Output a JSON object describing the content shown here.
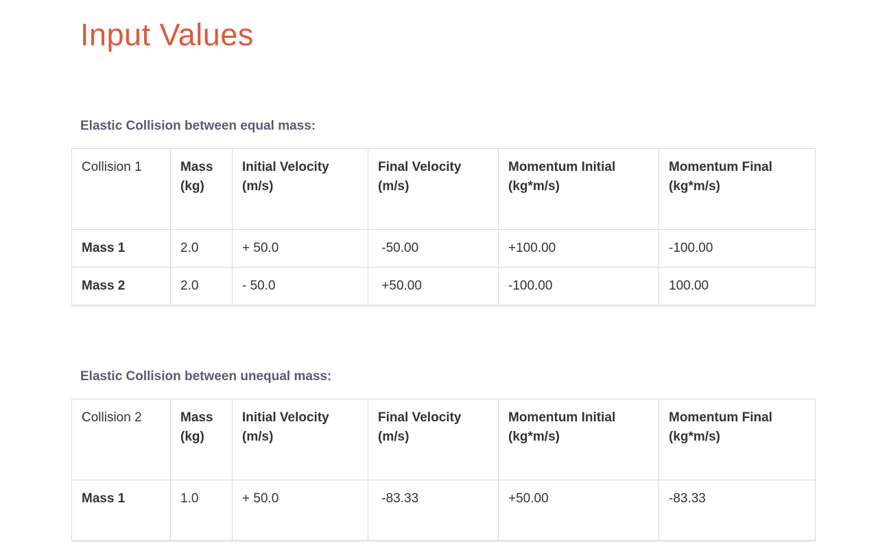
{
  "page": {
    "title": "Input Values"
  },
  "colors": {
    "accent": "#dc5a3d",
    "heading": "#5e5874",
    "text": "#333333",
    "border": "#d9d9d9"
  },
  "sections": [
    {
      "heading": "Elastic Collision between equal mass:",
      "table": {
        "columns": [
          "Collision 1",
          "Mass\n(kg)",
          "Initial Velocity\n(m/s)",
          "Final Velocity\n(m/s)",
          "Momentum Initial\n(kg*m/s)",
          "Momentum Final\n(kg*m/s)"
        ],
        "rows": [
          [
            "Mass 1",
            "2.0",
            "+ 50.0",
            " -50.00",
            "+100.00",
            "-100.00"
          ],
          [
            "Mass 2",
            "2.0",
            "- 50.0",
            " +50.00",
            "-100.00",
            "100.00"
          ]
        ]
      }
    },
    {
      "heading": "Elastic Collision between unequal mass:",
      "table": {
        "columns": [
          "Collision 2",
          "Mass\n(kg)",
          "Initial Velocity\n(m/s)",
          "Final Velocity\n(m/s)",
          "Momentum Initial\n(kg*m/s)",
          "Momentum Final\n(kg*m/s)"
        ],
        "rows": [
          [
            "Mass 1",
            "1.0",
            "+ 50.0",
            " -83.33",
            "+50.00",
            "-83.33"
          ]
        ]
      }
    }
  ]
}
